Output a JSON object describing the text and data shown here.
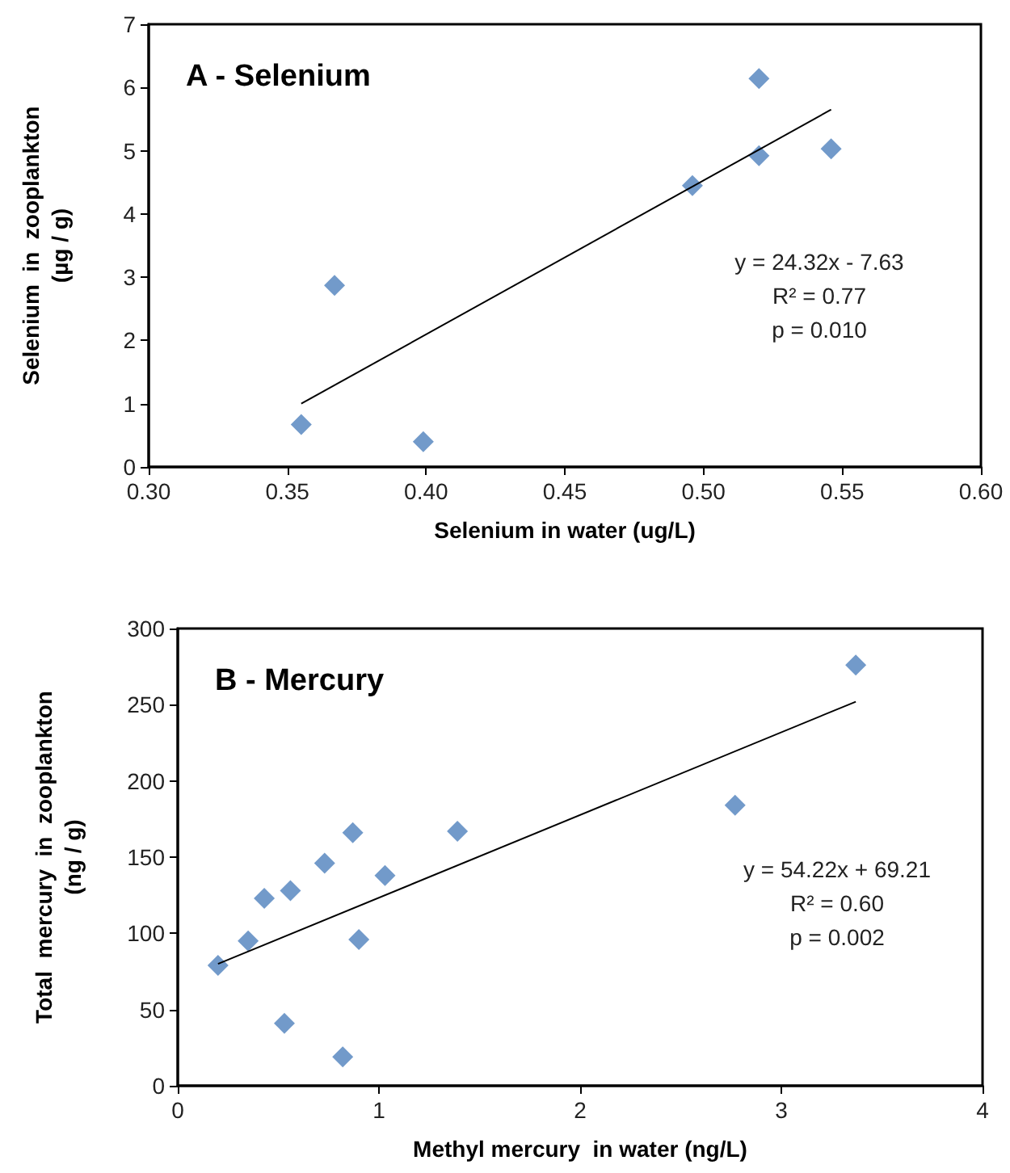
{
  "chart_data": [
    {
      "type": "scatter",
      "title": "A - Selenium",
      "xlabel": "Selenium in water (ug/L)",
      "ylabel": "Selenium  in  zooplankton\n(µg / g)",
      "annotations": [
        "y = 24.32x - 7.63",
        "R² = 0.77",
        "p = 0.010"
      ],
      "xlim": [
        0.3,
        0.6
      ],
      "xticks": [
        {
          "value": 0.3,
          "label": "0.30"
        },
        {
          "value": 0.35,
          "label": "0.35"
        },
        {
          "value": 0.4,
          "label": "0.40"
        },
        {
          "value": 0.45,
          "label": "0.45"
        },
        {
          "value": 0.5,
          "label": "0.50"
        },
        {
          "value": 0.55,
          "label": "0.55"
        },
        {
          "value": 0.6,
          "label": "0.60"
        }
      ],
      "ylim": [
        0,
        7
      ],
      "yticks": [
        0,
        1,
        2,
        3,
        4,
        5,
        6,
        7
      ],
      "grid": false,
      "series": [
        {
          "color": "#4f81bd",
          "marker": "diamond",
          "x": [
            0.355,
            0.367,
            0.399,
            0.496,
            0.52,
            0.52,
            0.546
          ],
          "values": [
            0.67,
            2.87,
            0.4,
            4.45,
            6.14,
            4.92,
            5.03
          ]
        },
        {
          "type": "line",
          "color": "#000000",
          "marker": "none",
          "line_style": "solid",
          "x": [
            0.355,
            0.546
          ],
          "values": [
            1.0,
            5.65
          ]
        }
      ]
    },
    {
      "type": "scatter",
      "title": "B - Mercury",
      "xlabel": "Methyl mercury  in water (ng/L)",
      "ylabel": "Total  mercury  in  zooplankton\n(ng / g)",
      "annotations": [
        "y = 54.22x + 69.21",
        "R² = 0.60",
        "p = 0.002"
      ],
      "xlim": [
        0,
        4
      ],
      "xticks": [
        0,
        1,
        2,
        3,
        4
      ],
      "ylim": [
        0,
        300
      ],
      "yticks": [
        0,
        50,
        100,
        150,
        200,
        250,
        300
      ],
      "grid": false,
      "series": [
        {
          "color": "#4f81bd",
          "marker": "diamond",
          "x": [
            0.2,
            0.35,
            0.43,
            0.53,
            0.56,
            0.73,
            0.82,
            0.87,
            0.9,
            1.03,
            1.39,
            2.77,
            3.37
          ],
          "values": [
            79,
            95,
            123,
            41,
            128,
            146,
            19,
            166,
            96,
            138,
            167,
            184,
            276
          ]
        },
        {
          "type": "line",
          "color": "#000000",
          "marker": "none",
          "line_style": "solid",
          "x": [
            0.2,
            3.37
          ],
          "values": [
            80,
            252
          ]
        }
      ]
    }
  ]
}
